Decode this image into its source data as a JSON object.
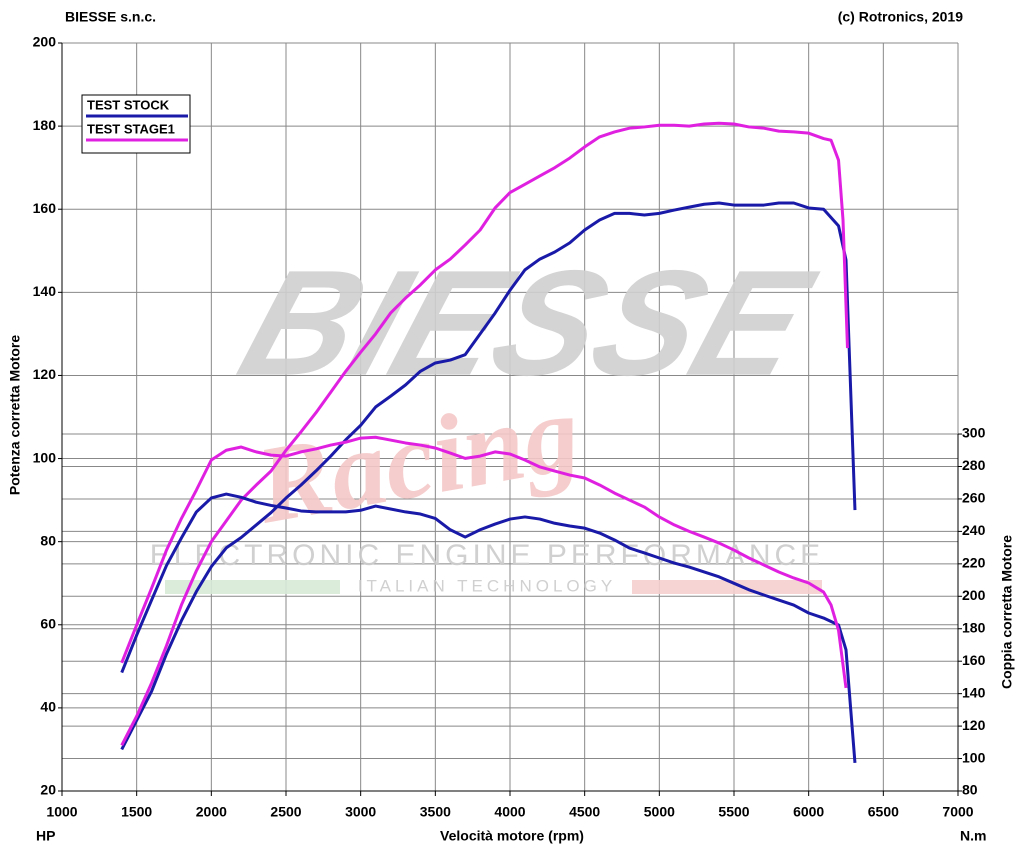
{
  "chart_data": {
    "type": "line",
    "header_left": "BIESSE s.n.c.",
    "header_right": "(c) Rotronics, 2019",
    "ylabel": "Potenza corretta Motore",
    "y2label": "Coppia corretta Motore",
    "xlabel": "Velocità motore (rpm)",
    "yunit": "HP",
    "y2unit": "N.m",
    "watermark": {
      "brand": "BIESSE",
      "script": "Racing",
      "line1": "ELECTRONIC ENGINE PERFORMANCE",
      "line2": "ITALIAN TECHNOLOGY"
    },
    "xlim": [
      1000,
      7000
    ],
    "xticks": [
      1000,
      1500,
      2000,
      2500,
      3000,
      3500,
      4000,
      4500,
      5000,
      5500,
      6000,
      6500,
      7000
    ],
    "ylim": [
      20,
      200
    ],
    "yticks": [
      20,
      40,
      60,
      80,
      100,
      120,
      140,
      160,
      180,
      200
    ],
    "y2lim": [
      80,
      541
    ],
    "y2ticks": [
      80,
      100,
      120,
      140,
      160,
      180,
      200,
      220,
      240,
      260,
      280,
      300
    ],
    "grid": true,
    "legend": "top-left",
    "series": [
      {
        "name": "TEST STOCK",
        "color": "#1a1aa8",
        "x": [
          1400,
          1500,
          1600,
          1700,
          1800,
          1900,
          2000,
          2100,
          2200,
          2300,
          2400,
          2500,
          2600,
          2700,
          2800,
          2900,
          3000,
          3100,
          3200,
          3300,
          3400,
          3500,
          3600,
          3700,
          3800,
          3900,
          4000,
          4100,
          4200,
          4300,
          4400,
          4500,
          4600,
          4700,
          4800,
          4900,
          5000,
          5100,
          5200,
          5300,
          5400,
          5500,
          5600,
          5700,
          5800,
          5900,
          6000,
          6100,
          6200,
          6250,
          6310
        ],
        "values": [
          30,
          37,
          44,
          53,
          61,
          68,
          74,
          78.5,
          81,
          84,
          87,
          90.5,
          93.6,
          97,
          100.6,
          104.5,
          108,
          112.4,
          115,
          117.7,
          121,
          123,
          123.7,
          125,
          130,
          135,
          140.5,
          145.4,
          148,
          149.7,
          151.9,
          155,
          157.4,
          159,
          159,
          158.6,
          159,
          159.8,
          160.5,
          161.2,
          161.5,
          161,
          161,
          161,
          161.5,
          161.5,
          160.3,
          160,
          156,
          147.8,
          87.6
        ]
      },
      {
        "name": "TEST STAGE1",
        "color": "#e020e0",
        "x": [
          1400,
          1500,
          1600,
          1700,
          1800,
          1900,
          2000,
          2100,
          2200,
          2300,
          2400,
          2500,
          2600,
          2700,
          2800,
          2900,
          3000,
          3100,
          3200,
          3300,
          3400,
          3500,
          3600,
          3700,
          3800,
          3900,
          4000,
          4100,
          4200,
          4300,
          4400,
          4500,
          4600,
          4700,
          4800,
          4900,
          5000,
          5100,
          5200,
          5300,
          5400,
          5500,
          5600,
          5700,
          5800,
          5900,
          6000,
          6100,
          6150,
          6200,
          6230,
          6260
        ],
        "values": [
          31,
          38,
          46,
          55,
          64.8,
          73,
          80,
          85,
          90,
          93.6,
          97,
          102,
          106.4,
          111,
          116,
          121,
          125.6,
          130,
          135,
          138.6,
          141.8,
          145.4,
          148,
          151.4,
          155,
          160.3,
          164,
          166,
          168,
          170,
          172.3,
          175,
          177.4,
          178.6,
          179.5,
          179.8,
          180.2,
          180.2,
          180,
          180.5,
          180.7,
          180.5,
          179.8,
          179.5,
          178.8,
          178.6,
          178.3,
          177,
          176.6,
          171.8,
          157.4,
          126.6
        ]
      },
      {
        "color": "#1a1aa8",
        "axis": "y2",
        "x": [
          1400,
          1500,
          1600,
          1700,
          1800,
          1900,
          2000,
          2100,
          2200,
          2300,
          2400,
          2500,
          2600,
          2700,
          2800,
          2900,
          3000,
          3100,
          3200,
          3300,
          3400,
          3500,
          3600,
          3700,
          3800,
          3900,
          4000,
          4100,
          4200,
          4300,
          4400,
          4500,
          4600,
          4700,
          4800,
          4900,
          5000,
          5100,
          5200,
          5300,
          5400,
          5500,
          5600,
          5700,
          5800,
          5900,
          6000,
          6100,
          6200,
          6250,
          6310
        ],
        "values": [
          153,
          176,
          197.7,
          219,
          236,
          252,
          260.6,
          263,
          261,
          258,
          256,
          254.4,
          252.6,
          252,
          252,
          252,
          253,
          255.6,
          253.8,
          252,
          250.7,
          248,
          241,
          236.5,
          241,
          244.5,
          247.6,
          248.9,
          247.6,
          245,
          243.3,
          242,
          239,
          234.7,
          229.7,
          226.7,
          223.6,
          220.5,
          218,
          215,
          212,
          208,
          204,
          200.8,
          197.7,
          194.6,
          189.7,
          186.6,
          182.3,
          167,
          97.3
        ]
      },
      {
        "color": "#e020e0",
        "axis": "y2",
        "x": [
          1400,
          1500,
          1600,
          1700,
          1800,
          1900,
          2000,
          2100,
          2200,
          2300,
          2400,
          2500,
          2600,
          2700,
          2800,
          2900,
          3000,
          3100,
          3200,
          3300,
          3400,
          3500,
          3600,
          3700,
          3800,
          3900,
          4000,
          4100,
          4200,
          4300,
          4400,
          4500,
          4600,
          4700,
          4800,
          4900,
          5000,
          5100,
          5200,
          5300,
          5400,
          5500,
          5600,
          5700,
          5800,
          5900,
          6000,
          6100,
          6150,
          6200,
          6250
        ],
        "values": [
          159,
          182.3,
          205,
          228.5,
          248,
          265.5,
          284,
          290,
          292,
          289,
          287,
          286.4,
          289,
          290.8,
          293.2,
          295,
          297.5,
          298,
          296.3,
          294.5,
          293.2,
          291.4,
          288.3,
          285,
          286.4,
          289,
          287.7,
          284,
          279.7,
          277.2,
          274.7,
          272.9,
          268.6,
          263.6,
          259.3,
          255,
          248.9,
          244,
          240,
          236.5,
          232.8,
          228.5,
          223.6,
          219.3,
          215,
          211.3,
          208.2,
          202.6,
          194.6,
          179,
          143.5
        ]
      }
    ]
  }
}
